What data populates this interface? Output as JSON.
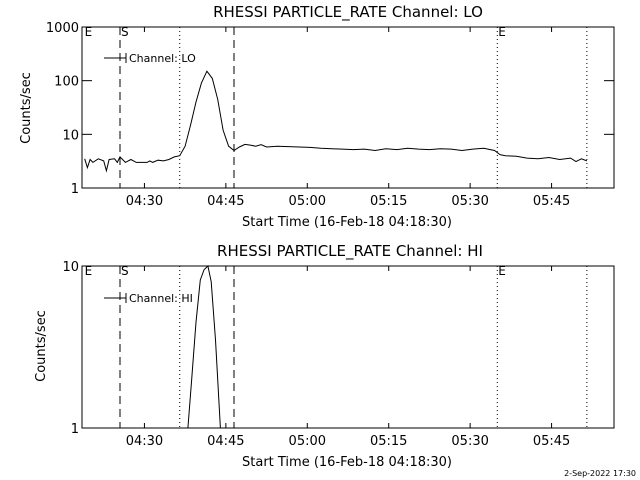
{
  "footer": {
    "timestamp": "2-Sep-2022 17:30"
  },
  "chart_data": [
    {
      "type": "line",
      "title": "RHESSI PARTICLE_RATE Channel: LO",
      "xlabel": "Start Time (16-Feb-18 04:18:30)",
      "ylabel": "Counts/sec",
      "yscale": "log",
      "ylim": [
        1,
        1000
      ],
      "xlim_minutes": [
        0,
        98
      ],
      "yticks": [
        {
          "value": 1,
          "label": "1"
        },
        {
          "value": 10,
          "label": "10"
        },
        {
          "value": 100,
          "label": "100"
        },
        {
          "value": 1000,
          "label": "1000"
        }
      ],
      "xticks": [
        {
          "minute": 11.5,
          "label": "04:30"
        },
        {
          "minute": 26.5,
          "label": "04:45"
        },
        {
          "minute": 41.5,
          "label": "05:00"
        },
        {
          "minute": 56.5,
          "label": "05:15"
        },
        {
          "minute": 71.5,
          "label": "05:30"
        },
        {
          "minute": 86.5,
          "label": "05:45"
        }
      ],
      "markers": [
        {
          "minute": 0.3,
          "label": "E",
          "style": "none"
        },
        {
          "minute": 7.0,
          "label": "S",
          "style": "dashed"
        },
        {
          "minute": 18.0,
          "label": "",
          "style": "dotted"
        },
        {
          "minute": 28.0,
          "label": "",
          "style": "dashed"
        },
        {
          "minute": 76.5,
          "label": "E",
          "style": "dotted"
        },
        {
          "minute": 93.0,
          "label": "",
          "style": "dotted"
        }
      ],
      "legend": {
        "position": "top-left",
        "label": "Channel: LO"
      },
      "series": [
        {
          "name": "Channel: LO",
          "x": [
            0.5,
            1,
            1.5,
            2,
            3,
            4,
            4.5,
            5,
            6,
            6.5,
            7,
            8,
            9,
            10,
            11,
            12,
            12.5,
            13,
            14,
            15,
            16,
            17,
            18,
            19,
            20,
            21,
            22,
            23,
            24,
            25,
            26,
            27,
            28,
            29,
            30,
            31,
            32,
            33,
            34,
            36,
            38,
            40,
            42,
            44,
            46,
            48,
            50,
            52,
            54,
            56,
            58,
            60,
            62,
            64,
            66,
            68,
            70,
            72,
            74,
            76,
            77,
            78,
            80,
            82,
            84,
            86,
            88,
            90,
            91,
            92,
            93
          ],
          "y": [
            3.5,
            2.4,
            3.4,
            3.0,
            3.5,
            3.2,
            2.1,
            3.4,
            3.5,
            3.0,
            3.8,
            3.0,
            3.4,
            3.0,
            3.0,
            3.0,
            3.2,
            3.0,
            3.3,
            3.2,
            3.4,
            3.8,
            4.0,
            6,
            15,
            40,
            90,
            150,
            110,
            45,
            12,
            6,
            5,
            5.8,
            6.5,
            6.3,
            6.0,
            6.4,
            5.8,
            6.0,
            5.9,
            5.8,
            5.7,
            5.5,
            5.4,
            5.3,
            5.2,
            5.3,
            5.0,
            5.4,
            5.2,
            5.5,
            5.3,
            5.2,
            5.4,
            5.3,
            5.0,
            5.3,
            5.5,
            5.0,
            4.2,
            4.0,
            3.9,
            3.6,
            3.5,
            3.7,
            3.4,
            3.6,
            3.1,
            3.5,
            3.2
          ]
        }
      ]
    },
    {
      "type": "line",
      "title": "RHESSI PARTICLE_RATE Channel: HI",
      "xlabel": "Start Time (16-Feb-18 04:18:30)",
      "ylabel": "Counts/sec",
      "yscale": "log",
      "ylim": [
        1,
        10
      ],
      "xlim_minutes": [
        0,
        98
      ],
      "yticks": [
        {
          "value": 1,
          "label": "1"
        },
        {
          "value": 10,
          "label": "10"
        }
      ],
      "xticks": [
        {
          "minute": 11.5,
          "label": "04:30"
        },
        {
          "minute": 26.5,
          "label": "04:45"
        },
        {
          "minute": 41.5,
          "label": "05:00"
        },
        {
          "minute": 56.5,
          "label": "05:15"
        },
        {
          "minute": 71.5,
          "label": "05:30"
        },
        {
          "minute": 86.5,
          "label": "05:45"
        }
      ],
      "markers": [
        {
          "minute": 0.3,
          "label": "E",
          "style": "none"
        },
        {
          "minute": 7.0,
          "label": "S",
          "style": "dashed"
        },
        {
          "minute": 18.0,
          "label": "",
          "style": "dotted"
        },
        {
          "minute": 28.0,
          "label": "",
          "style": "dashed"
        },
        {
          "minute": 76.5,
          "label": "E",
          "style": "dotted"
        },
        {
          "minute": 93.0,
          "label": "",
          "style": "dotted"
        }
      ],
      "legend": {
        "position": "top-left",
        "label": "Channel: HI"
      },
      "series": [
        {
          "name": "Channel: HI",
          "x": [
            19.5,
            20.2,
            21.0,
            21.8,
            22.5,
            23.2,
            23.8,
            24.6,
            25.5
          ],
          "y": [
            1.0,
            2.0,
            4.5,
            8.2,
            9.5,
            10.2,
            8.0,
            3.5,
            1.0
          ]
        }
      ]
    }
  ]
}
